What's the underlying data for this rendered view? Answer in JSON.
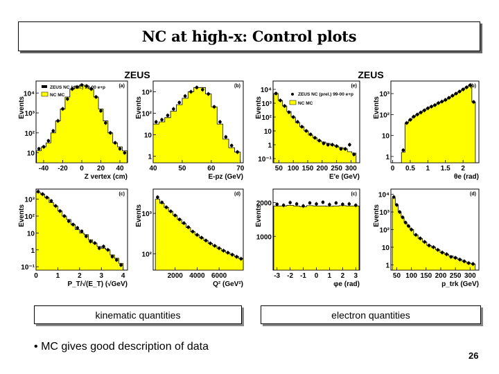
{
  "slide": {
    "title": "NC at high-x: Control plots",
    "page_number": "26",
    "bullet": "MC gives good description of data",
    "bullet_symbol": "•"
  },
  "figures": {
    "left": {
      "header": "ZEUS",
      "legend": [
        "ZEUS NC (prel.) 99-00 e+p",
        "NC MC"
      ]
    },
    "right": {
      "header": "ZEUS",
      "legend": [
        "ZEUS NC (prel.) 99-00 e+p",
        "NC MC"
      ]
    }
  },
  "labels": {
    "left": "kinematic quantities",
    "right": "electron quantities"
  },
  "colors": {
    "mc_fill": "#ffff00",
    "data_marker": "#000000"
  },
  "chart_data": [
    {
      "type": "histogram",
      "panel": "(a)",
      "xlabel": "Z vertex (cm)",
      "ylabel": "Events",
      "xticks": [
        "-40",
        "-20",
        "0",
        "20",
        "40"
      ],
      "yticks": [
        "10",
        "10²",
        "10³",
        "10⁴"
      ],
      "xlim": [
        -48,
        48
      ],
      "log_range": [
        0.5,
        4.6
      ],
      "x": [
        -45,
        -40,
        -35,
        -30,
        -25,
        -20,
        -15,
        -10,
        -5,
        0,
        5,
        10,
        15,
        20,
        25,
        30,
        35,
        40,
        45
      ],
      "mc": [
        1.1,
        1.3,
        1.5,
        2.0,
        2.6,
        3.2,
        3.8,
        4.2,
        4.35,
        4.4,
        4.35,
        4.2,
        3.8,
        3.2,
        2.6,
        2.0,
        1.5,
        1.3,
        1.1
      ],
      "data": [
        1.2,
        1.3,
        1.6,
        2.1,
        2.6,
        3.2,
        3.7,
        4.2,
        4.3,
        4.4,
        4.35,
        4.2,
        3.8,
        3.1,
        2.5,
        2.0,
        1.5,
        1.2,
        1.0
      ]
    },
    {
      "type": "histogram",
      "panel": "(b)",
      "xlabel": "E-pz (GeV)",
      "ylabel": "Events",
      "xticks": [
        "40",
        "50",
        "60",
        "70"
      ],
      "yticks": [
        "1",
        "10",
        "10²",
        "10³"
      ],
      "xlim": [
        40,
        71
      ],
      "log_range": [
        -0.3,
        3.5
      ],
      "x": [
        41,
        43,
        45,
        47,
        49,
        51,
        53,
        55,
        57,
        59,
        61,
        63,
        65,
        67,
        69
      ],
      "mc": [
        1.5,
        1.6,
        1.8,
        2.1,
        2.4,
        2.7,
        3.0,
        3.2,
        3.2,
        2.9,
        2.3,
        1.5,
        0.8,
        0.4,
        0.2
      ],
      "data": [
        1.6,
        1.7,
        1.9,
        2.2,
        2.5,
        2.8,
        3.0,
        3.2,
        3.1,
        2.9,
        2.3,
        1.6,
        0.9,
        0.5,
        0.2
      ]
    },
    {
      "type": "histogram",
      "panel": "(c)",
      "xlabel": "P_T/√(E_T) (√GeV)",
      "ylabel": "Events",
      "xticks": [
        "0",
        "1",
        "2",
        "3",
        "4"
      ],
      "yticks": [
        "10⁻¹",
        "1",
        "10",
        "10²",
        "10³"
      ],
      "xlim": [
        0,
        4.2
      ],
      "log_range": [
        -1.2,
        3.6
      ],
      "x": [
        0.1,
        0.3,
        0.5,
        0.7,
        0.9,
        1.1,
        1.3,
        1.5,
        1.7,
        1.9,
        2.1,
        2.3,
        2.5,
        2.7,
        2.9,
        3.1,
        3.3,
        3.5,
        3.7,
        3.9
      ],
      "mc": [
        3.4,
        3.3,
        3.1,
        2.8,
        2.6,
        2.3,
        2.0,
        1.8,
        1.5,
        1.2,
        1.0,
        0.9,
        0.6,
        0.4,
        0.2,
        0.1,
        0.0,
        -0.3,
        -0.5,
        -0.8
      ],
      "data": [
        3.45,
        3.3,
        3.1,
        2.9,
        2.6,
        2.3,
        2.0,
        1.7,
        1.5,
        1.3,
        1.1,
        0.8,
        0.5,
        0.4,
        0.1,
        0.2,
        0.0,
        -0.4,
        -0.6,
        -0.9
      ]
    },
    {
      "type": "histogram",
      "panel": "(d)",
      "xlabel": "Q² (GeV²)",
      "ylabel": "Events",
      "xticks": [
        "2000",
        "4000",
        "6000"
      ],
      "yticks": [
        "10²",
        "10³"
      ],
      "xlim": [
        0,
        8200
      ],
      "log_range": [
        1.6,
        3.6
      ],
      "x": [
        400,
        800,
        1200,
        1600,
        2000,
        2400,
        2800,
        3200,
        3600,
        4000,
        4400,
        4800,
        5200,
        5600,
        6000,
        6400,
        6800,
        7200,
        7600,
        8000
      ],
      "mc": [
        3.35,
        3.25,
        3.15,
        3.05,
        2.95,
        2.85,
        2.75,
        2.65,
        2.55,
        2.47,
        2.4,
        2.33,
        2.26,
        2.2,
        2.14,
        2.08,
        2.03,
        1.98,
        1.93,
        1.88
      ],
      "data": [
        3.4,
        3.27,
        3.15,
        3.05,
        2.95,
        2.85,
        2.76,
        2.66,
        2.55,
        2.47,
        2.4,
        2.33,
        2.26,
        2.2,
        2.14,
        2.08,
        2.03,
        1.98,
        1.93,
        1.88
      ]
    },
    {
      "type": "histogram",
      "panel": "(e)",
      "xlabel": "E'e (GeV)",
      "ylabel": "Events",
      "xticks": [
        "50",
        "100",
        "150",
        "200",
        "250",
        "300"
      ],
      "yticks": [
        "10⁻¹",
        "1",
        "10",
        "10²",
        "10³",
        "10⁴"
      ],
      "xlim": [
        30,
        330
      ],
      "log_range": [
        -1.3,
        4.6
      ],
      "x": [
        40,
        55,
        70,
        85,
        100,
        115,
        130,
        145,
        160,
        175,
        190,
        205,
        220,
        235,
        250,
        265,
        280,
        295,
        310
      ],
      "mc": [
        3.7,
        3.2,
        2.8,
        2.4,
        2.0,
        1.6,
        1.3,
        1.0,
        0.7,
        0.5,
        0.3,
        0.2,
        0.1,
        0.0,
        -0.1,
        -0.2,
        -0.3,
        -0.5,
        -0.6
      ],
      "data": [
        3.7,
        3.2,
        2.8,
        2.35,
        2.0,
        1.65,
        1.3,
        1.0,
        0.75,
        0.5,
        0.3,
        0.1,
        0.0,
        0.0,
        -0.1,
        -0.3,
        -0.3,
        0.0,
        -0.7
      ]
    },
    {
      "type": "histogram",
      "panel": "(b)",
      "xlabel": "θe (rad)",
      "ylabel": "Events",
      "xticks": [
        "0",
        "0.5",
        "1",
        "1.5",
        "2"
      ],
      "yticks": [
        "1",
        "10",
        "10²",
        "10³"
      ],
      "xlim": [
        -0.05,
        2.45
      ],
      "log_range": [
        -0.3,
        3.6
      ],
      "x": [
        0.3,
        0.4,
        0.5,
        0.6,
        0.7,
        0.8,
        0.9,
        1.0,
        1.1,
        1.2,
        1.3,
        1.4,
        1.5,
        1.6,
        1.7,
        1.8,
        1.9,
        2.0,
        2.1,
        2.2,
        2.3
      ],
      "mc": [
        0.2,
        1.6,
        1.75,
        1.9,
        2.0,
        2.1,
        2.2,
        2.3,
        2.38,
        2.45,
        2.55,
        2.62,
        2.7,
        2.8,
        2.9,
        3.0,
        3.1,
        3.2,
        3.3,
        3.4,
        2.6
      ],
      "data": [
        0.3,
        1.6,
        1.75,
        1.9,
        2.0,
        2.1,
        2.2,
        2.3,
        2.38,
        2.45,
        2.55,
        2.62,
        2.7,
        2.8,
        2.9,
        3.0,
        3.1,
        3.2,
        3.3,
        3.4,
        2.6
      ]
    },
    {
      "type": "histogram",
      "panel": "(c)",
      "xlabel": "φe (rad)",
      "ylabel": "Events",
      "xticks": [
        "-3",
        "-2",
        "-1",
        "0",
        "1",
        "2",
        "3"
      ],
      "yticks": [
        "1000",
        "2000"
      ],
      "xlim": [
        -3.3,
        3.3
      ],
      "ylim": [
        0,
        2400
      ],
      "linear": true,
      "x": [
        -3,
        -2.5,
        -2,
        -1.5,
        -1,
        -0.5,
        0,
        0.5,
        1,
        1.5,
        2,
        2.5,
        3
      ],
      "mc": [
        1900,
        1900,
        1920,
        1900,
        1880,
        1910,
        1900,
        1900,
        1890,
        1900,
        1910,
        1900,
        1900
      ],
      "data": [
        1950,
        1920,
        2000,
        1960,
        1900,
        1990,
        1960,
        2010,
        1940,
        1990,
        1950,
        1960,
        1920
      ]
    },
    {
      "type": "histogram",
      "panel": "(d)",
      "xlabel": "p_trk (GeV)",
      "ylabel": "Events",
      "xticks": [
        "50",
        "100",
        "150",
        "200",
        "250",
        "300"
      ],
      "yticks": [
        "1",
        "10",
        "10²",
        "10³",
        "10⁴"
      ],
      "xlim": [
        30,
        330
      ],
      "log_range": [
        -0.3,
        4.3
      ],
      "x": [
        40,
        50,
        60,
        70,
        80,
        90,
        100,
        115,
        130,
        145,
        160,
        175,
        190,
        205,
        220,
        235,
        250,
        265,
        280,
        295,
        310
      ],
      "mc": [
        3.8,
        3.4,
        3.0,
        2.7,
        2.4,
        2.2,
        2.0,
        1.7,
        1.5,
        1.3,
        1.1,
        1.0,
        0.85,
        0.7,
        0.6,
        0.5,
        0.4,
        0.3,
        0.2,
        0.1,
        0.05
      ],
      "data": [
        3.85,
        3.4,
        3.0,
        2.7,
        2.4,
        2.2,
        2.0,
        1.7,
        1.5,
        1.3,
        1.1,
        1.0,
        0.85,
        0.7,
        0.6,
        0.45,
        0.4,
        0.3,
        0.2,
        0.1,
        0.05
      ]
    }
  ]
}
